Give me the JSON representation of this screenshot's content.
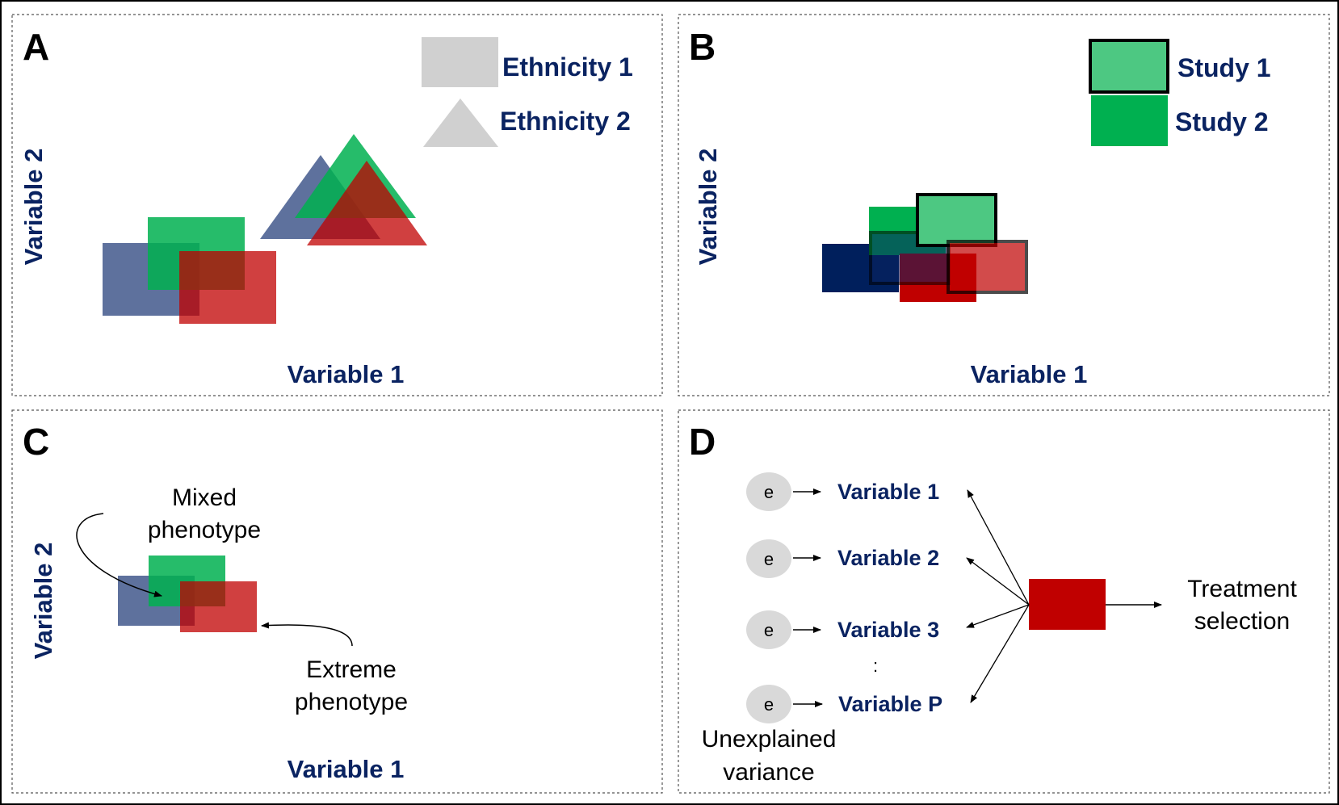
{
  "colors": {
    "navy": "#0a2361",
    "blue_fill": "#3a5288",
    "green": "#00b050",
    "red": "#c00000",
    "legend_gray": "#d0d0d0",
    "node_gray": "#d9d9d9",
    "study1_green": "#4dc882"
  },
  "panels": {
    "a": {
      "letter": "A",
      "xlabel": "Variable 1",
      "ylabel": "Variable 2",
      "legend": [
        "Ethnicity 1",
        "Ethnicity 2"
      ]
    },
    "b": {
      "letter": "B",
      "xlabel": "Variable 1",
      "ylabel": "Variable 2",
      "legend": [
        "Study 1",
        "Study 2"
      ]
    },
    "c": {
      "letter": "C",
      "xlabel": "Variable 1",
      "ylabel": "Variable 2",
      "annotation_mixed": [
        "Mixed",
        "phenotype"
      ],
      "annotation_extreme": [
        "Extreme",
        "phenotype"
      ]
    },
    "d": {
      "letter": "D",
      "error_node": "e",
      "variables": [
        "Variable 1",
        "Variable 2",
        "Variable 3",
        "Variable P"
      ],
      "ellipsis": ":",
      "unexplained": [
        "Unexplained",
        "variance"
      ],
      "outcome": [
        "Treatment",
        "selection"
      ]
    }
  }
}
